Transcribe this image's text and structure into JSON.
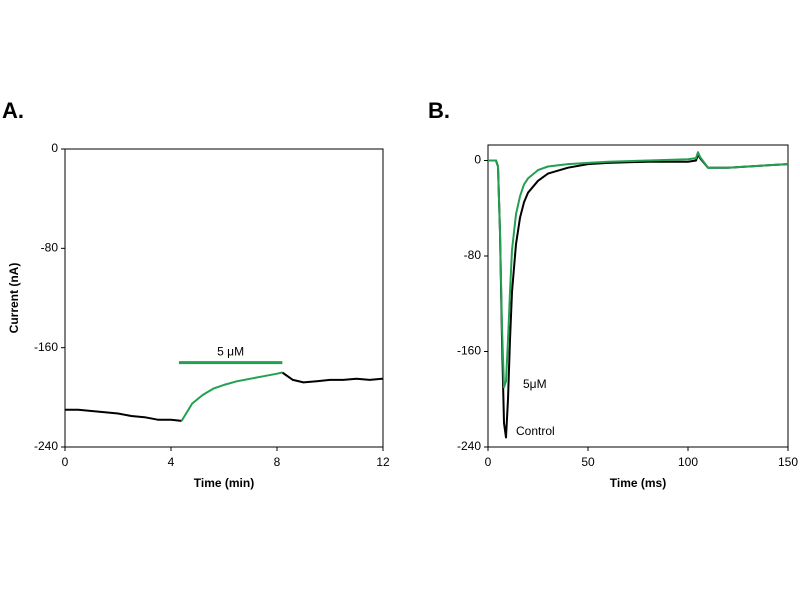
{
  "chart_data": [
    {
      "type": "line",
      "title": "A.",
      "xlabel": "Time (min)",
      "ylabel": "Current (nA)",
      "x": [
        0,
        0.5,
        1,
        1.5,
        2,
        2.5,
        3,
        3.5,
        4,
        4.4,
        4.8,
        5.2,
        5.6,
        6,
        6.5,
        7,
        7.5,
        8,
        8.2,
        8.6,
        9,
        9.5,
        10,
        10.5,
        11,
        11.5,
        12
      ],
      "series": [
        {
          "color": "#000000",
          "values": [
            -210,
            -210,
            -211,
            -212,
            -213,
            -215,
            -216,
            -218,
            -218,
            -219,
            null,
            null,
            null,
            null,
            null,
            null,
            null,
            null,
            -180,
            -186,
            -188,
            -187,
            -186,
            -186,
            -185,
            -186,
            -185
          ]
        },
        {
          "color": "#22a050",
          "values": [
            null,
            null,
            null,
            null,
            null,
            null,
            null,
            null,
            null,
            -219,
            -205,
            -198,
            -193,
            -190,
            -187,
            -185,
            -183,
            -181,
            -180,
            null,
            null,
            null,
            null,
            null,
            null,
            null,
            null
          ]
        }
      ],
      "annotation": {
        "text": "5 μM",
        "x": [
          4.3,
          8.2
        ],
        "y": -172,
        "color": "#22a050"
      },
      "xlim": [
        0,
        12
      ],
      "xticks": [
        0,
        4,
        8,
        12
      ],
      "ylim": [
        -240,
        0
      ],
      "yticks": [
        0,
        -80,
        -160,
        -240
      ]
    },
    {
      "type": "line",
      "title": "B.",
      "xlabel": "Time (ms)",
      "x": [
        0,
        4,
        5,
        6,
        7,
        8,
        9,
        10,
        11,
        12,
        14,
        16,
        18,
        20,
        25,
        30,
        40,
        50,
        60,
        80,
        100,
        104,
        105,
        106,
        110,
        120,
        130,
        140,
        150
      ],
      "series": [
        {
          "name": "Control",
          "color": "#000000",
          "values": [
            0,
            0,
            -5,
            -60,
            -150,
            -220,
            -232,
            -200,
            -150,
            -110,
            -70,
            -48,
            -35,
            -27,
            -17,
            -11,
            -6,
            -3,
            -2,
            -1,
            -1,
            0,
            5,
            2,
            -6,
            -6,
            -5,
            -4,
            -3
          ]
        },
        {
          "name": "5μM",
          "color": "#22a050",
          "values": [
            0,
            0,
            -5,
            -60,
            -140,
            -190,
            -185,
            -150,
            -110,
            -75,
            -45,
            -30,
            -20,
            -15,
            -8,
            -5,
            -3,
            -2,
            -1,
            0,
            1,
            2,
            7,
            3,
            -6,
            -6,
            -5,
            -4,
            -3
          ]
        }
      ],
      "xlim": [
        0,
        150
      ],
      "xticks": [
        0,
        50,
        100,
        150
      ],
      "ylim": [
        -240,
        13
      ],
      "yticks": [
        0,
        -80,
        -160,
        -240
      ]
    }
  ]
}
